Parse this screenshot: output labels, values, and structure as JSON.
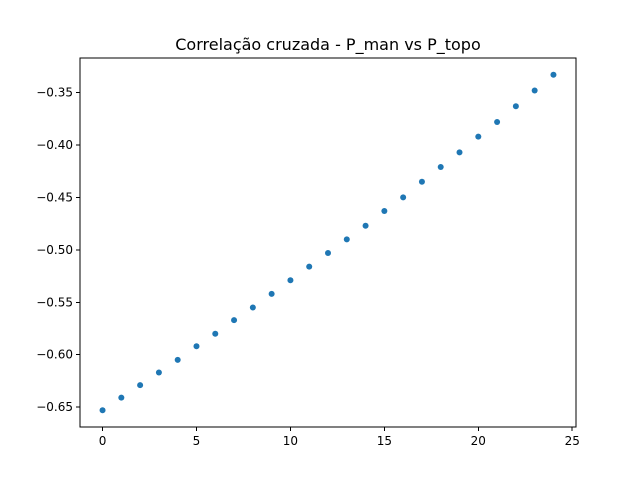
{
  "chart_data": {
    "type": "scatter",
    "title": "Correlação cruzada - P_man vs P_topo",
    "xlabel": "",
    "ylabel": "",
    "xlim": [
      -1.2,
      25.2
    ],
    "ylim": [
      -0.669,
      -0.317
    ],
    "grid": false,
    "legend": "none",
    "marker_color": "#1f77b4",
    "x_ticks": [
      0,
      5,
      10,
      15,
      20,
      25
    ],
    "x_tick_labels": [
      "0",
      "5",
      "10",
      "15",
      "20",
      "25"
    ],
    "y_ticks": [
      -0.65,
      -0.6,
      -0.55,
      -0.5,
      -0.45,
      -0.4,
      -0.35
    ],
    "y_tick_labels": [
      "−0.65",
      "−0.60",
      "−0.55",
      "−0.50",
      "−0.45",
      "−0.40",
      "−0.35"
    ],
    "x": [
      0,
      1,
      2,
      3,
      4,
      5,
      6,
      7,
      8,
      9,
      10,
      11,
      12,
      13,
      14,
      15,
      16,
      17,
      18,
      19,
      20,
      21,
      22,
      23,
      24
    ],
    "y": [
      -0.653,
      -0.641,
      -0.629,
      -0.617,
      -0.605,
      -0.592,
      -0.58,
      -0.567,
      -0.555,
      -0.542,
      -0.529,
      -0.516,
      -0.503,
      -0.49,
      -0.477,
      -0.463,
      -0.45,
      -0.435,
      -0.421,
      -0.407,
      -0.392,
      -0.378,
      -0.363,
      -0.348,
      -0.333
    ]
  }
}
